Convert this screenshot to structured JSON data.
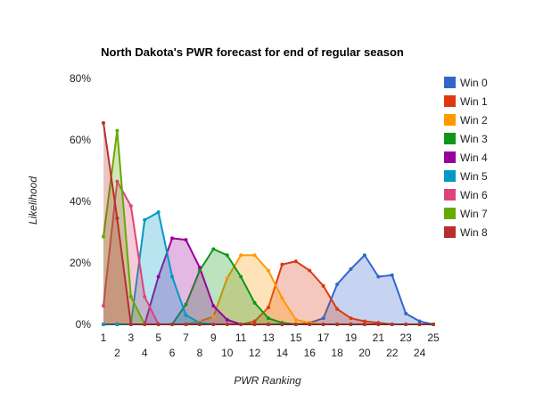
{
  "chart_data": {
    "type": "area",
    "title": "North Dakota's PWR forecast for end of regular season",
    "xlabel": "PWR Ranking",
    "ylabel": "Likelihood",
    "x": [
      1,
      2,
      3,
      4,
      5,
      6,
      7,
      8,
      9,
      10,
      11,
      12,
      13,
      14,
      15,
      16,
      17,
      18,
      19,
      20,
      21,
      22,
      23,
      24,
      25
    ],
    "xlim": [
      1,
      25
    ],
    "ylim": [
      0,
      80
    ],
    "y_ticks": [
      "0%",
      "20%",
      "40%",
      "60%",
      "80%"
    ],
    "x_ticks_top": [
      "1",
      "3",
      "5",
      "7",
      "9",
      "11",
      "13",
      "15",
      "17",
      "19",
      "21",
      "23",
      "25"
    ],
    "x_ticks_bottom": [
      "2",
      "4",
      "6",
      "8",
      "10",
      "12",
      "14",
      "16",
      "18",
      "20",
      "22",
      "24"
    ],
    "grid": false,
    "legend_position": "right",
    "series": [
      {
        "name": "Win 0",
        "color": "#3366cc",
        "values": [
          0,
          0,
          0,
          0,
          0,
          0,
          0,
          0,
          0,
          0,
          0,
          0,
          0,
          0,
          0,
          0.5,
          2,
          13,
          18,
          22.5,
          15.5,
          16,
          3.5,
          1,
          0
        ]
      },
      {
        "name": "Win 1",
        "color": "#dc3912",
        "values": [
          0,
          0,
          0,
          0,
          0,
          0,
          0,
          0,
          0,
          0,
          0,
          1,
          5.5,
          19.5,
          20.5,
          17.5,
          12.5,
          5,
          2,
          1,
          0.5,
          0,
          0,
          0,
          0
        ]
      },
      {
        "name": "Win 2",
        "color": "#ff9900",
        "values": [
          0,
          0,
          0,
          0,
          0,
          0,
          0,
          1,
          2.5,
          15,
          22.5,
          22.5,
          17.5,
          8.5,
          1.5,
          0.5,
          0,
          0,
          0,
          0,
          0,
          0,
          0,
          0,
          0
        ]
      },
      {
        "name": "Win 3",
        "color": "#109618",
        "values": [
          0,
          0,
          0,
          0,
          0,
          0,
          6.5,
          17.5,
          24.5,
          22.5,
          15.5,
          7,
          2,
          0.5,
          0,
          0,
          0,
          0,
          0,
          0,
          0,
          0,
          0,
          0,
          0
        ]
      },
      {
        "name": "Win 4",
        "color": "#990099",
        "values": [
          0,
          0,
          0,
          0,
          15.5,
          28,
          27.5,
          18.5,
          6,
          1.5,
          0,
          0,
          0,
          0,
          0,
          0,
          0,
          0,
          0,
          0,
          0,
          0,
          0,
          0,
          0
        ]
      },
      {
        "name": "Win 5",
        "color": "#0099c6",
        "values": [
          0,
          0,
          0,
          34,
          36.5,
          15.5,
          3,
          0.5,
          0,
          0,
          0,
          0,
          0,
          0,
          0,
          0,
          0,
          0,
          0,
          0,
          0,
          0,
          0,
          0,
          0
        ]
      },
      {
        "name": "Win 6",
        "color": "#dd4477",
        "values": [
          6,
          46.5,
          38.5,
          9,
          0,
          0,
          0,
          0,
          0,
          0,
          0,
          0,
          0,
          0,
          0,
          0,
          0,
          0,
          0,
          0,
          0,
          0,
          0,
          0,
          0
        ]
      },
      {
        "name": "Win 7",
        "color": "#66aa00",
        "values": [
          28.5,
          63,
          9,
          0,
          0,
          0,
          0,
          0,
          0,
          0,
          0,
          0,
          0,
          0,
          0,
          0,
          0,
          0,
          0,
          0,
          0,
          0,
          0,
          0,
          0
        ]
      },
      {
        "name": "Win 8",
        "color": "#b82e2e",
        "values": [
          65.5,
          34.5,
          0,
          0,
          0,
          0,
          0,
          0,
          0,
          0,
          0,
          0,
          0,
          0,
          0,
          0,
          0,
          0,
          0,
          0,
          0,
          0,
          0,
          0,
          0
        ]
      }
    ]
  }
}
